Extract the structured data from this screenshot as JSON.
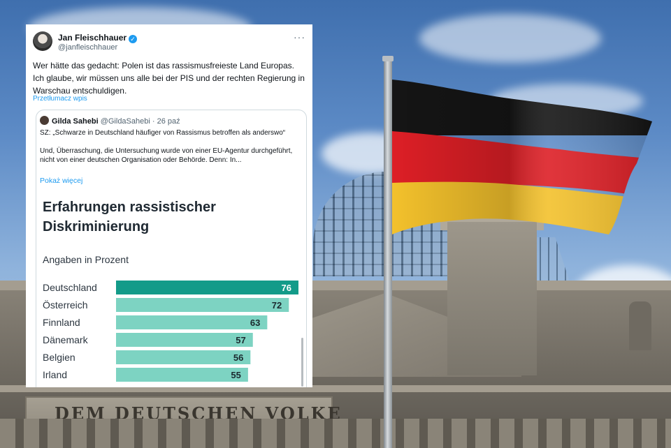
{
  "background": {
    "inscription": "DEM DEUTSCHEN VOLKE",
    "flag_colors": [
      "#151515",
      "#dd1f26",
      "#f3c12c"
    ]
  },
  "tweet": {
    "author_name": "Jan Fleischhauer",
    "handle": "@janfleischhauer",
    "verified_icon": "check-badge-icon",
    "more_icon": "···",
    "text": "Wer hätte das gedacht: Polen ist das rassismusfreieste Land Europas. Ich glaube, wir müssen uns alle bei der PIS und der rechten Regierung in Warschau entschuldigen.",
    "translate_label": "Przetłumacz wpis"
  },
  "quote": {
    "author_name": "Gilda Sahebi",
    "handle": "@GildaSahebi",
    "date": "· 26 paź",
    "text_line1": "SZ: „Schwarze in Deutschland häufiger von Rassismus betroffen als anderswo“",
    "text_line2": "Und, Überraschung, die Untersuchung wurde von einer EU-Agentur durchgeführt, nicht von einer deutschen Organisation oder Behörde. Denn: In...",
    "show_more": "Pokaż więcej"
  },
  "chart_data": {
    "type": "bar",
    "orientation": "horizontal",
    "title": "Erfahrungen rassistischer Diskriminierung",
    "subtitle": "Angaben in Prozent",
    "categories": [
      "Deutschland",
      "Österreich",
      "Finnland",
      "Dänemark",
      "Belgien",
      "Irland"
    ],
    "values": [
      76,
      72,
      63,
      57,
      56,
      55
    ],
    "highlight_index": 0,
    "highlight_color": "#139b89",
    "bar_color": "#7dd3c2",
    "xlim": [
      0,
      76
    ]
  }
}
